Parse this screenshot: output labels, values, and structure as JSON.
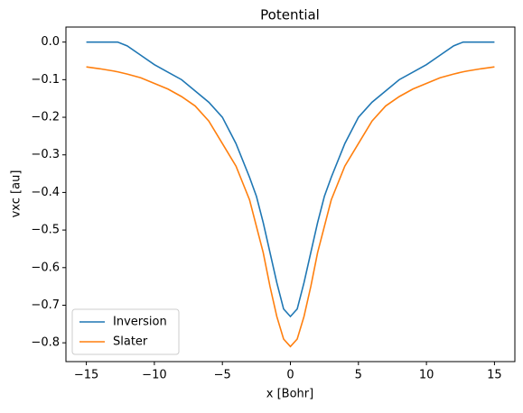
{
  "chart_data": {
    "type": "line",
    "title": "Potential",
    "x_label": "x [Bohr]",
    "y_label": "vxc [au]",
    "x": [
      -15,
      -14,
      -13,
      -12.7,
      -12,
      -11,
      -10,
      -9,
      -8,
      -7,
      -6,
      -5,
      -4,
      -3,
      -2.5,
      -2,
      -1.5,
      -1,
      -0.5,
      0,
      0.5,
      1,
      1.5,
      2,
      2.5,
      3,
      4,
      5,
      6,
      7,
      8,
      9,
      10,
      11,
      12,
      12.7,
      13,
      14,
      15
    ],
    "series": [
      {
        "name": "Inversion",
        "color": "#1f77b4",
        "values": [
          0,
          0,
          0,
          0,
          -0.01,
          -0.035,
          -0.06,
          -0.08,
          -0.1,
          -0.13,
          -0.16,
          -0.2,
          -0.27,
          -0.36,
          -0.41,
          -0.48,
          -0.56,
          -0.64,
          -0.71,
          -0.73,
          -0.71,
          -0.64,
          -0.56,
          -0.48,
          -0.41,
          -0.36,
          -0.27,
          -0.2,
          -0.16,
          -0.13,
          -0.1,
          -0.08,
          -0.06,
          -0.035,
          -0.01,
          0,
          0,
          0,
          0
        ]
      },
      {
        "name": "Slater",
        "color": "#ff7f0e",
        "values": [
          -0.066,
          -0.071,
          -0.077,
          -0.079,
          -0.085,
          -0.095,
          -0.11,
          -0.125,
          -0.145,
          -0.17,
          -0.21,
          -0.27,
          -0.33,
          -0.42,
          -0.49,
          -0.56,
          -0.65,
          -0.73,
          -0.79,
          -0.81,
          -0.79,
          -0.73,
          -0.65,
          -0.56,
          -0.49,
          -0.42,
          -0.33,
          -0.27,
          -0.21,
          -0.17,
          -0.145,
          -0.125,
          -0.11,
          -0.095,
          -0.085,
          -0.079,
          -0.077,
          -0.071,
          -0.066
        ]
      }
    ],
    "xlim": [
      -16.5,
      16.5
    ],
    "xticks": [
      {
        "value": -15,
        "label": "−15"
      },
      {
        "value": -10,
        "label": "−10"
      },
      {
        "value": -5,
        "label": "−5"
      },
      0,
      5,
      10,
      15
    ],
    "ylim": [
      -0.85,
      0.04
    ],
    "yticks": [
      {
        "value": 0,
        "label": "0.0"
      },
      {
        "value": -0.1,
        "label": "−0.1"
      },
      {
        "value": -0.2,
        "label": "−0.2"
      },
      {
        "value": -0.3,
        "label": "−0.3"
      },
      {
        "value": -0.4,
        "label": "−0.4"
      },
      {
        "value": -0.5,
        "label": "−0.5"
      },
      {
        "value": -0.6,
        "label": "−0.6"
      },
      {
        "value": -0.7,
        "label": "−0.7"
      },
      {
        "value": -0.8,
        "label": "−0.8"
      }
    ],
    "legend": "lower left"
  }
}
